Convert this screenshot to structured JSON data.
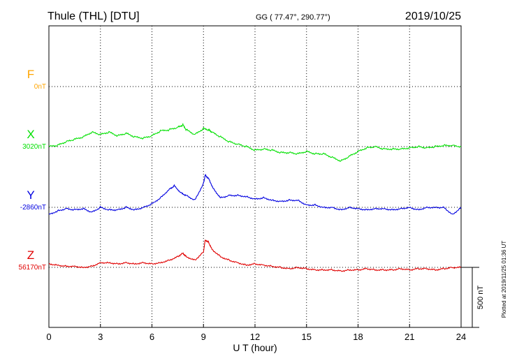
{
  "header": {
    "station": "Thule (THL)  [DTU]",
    "coords": "GG ( 77.47°, 290.77°)",
    "date": "2019/10/25"
  },
  "footer": {
    "plotted": "Plotted at 2019/11/25 01:36 UT"
  },
  "chart_data": {
    "type": "line",
    "title": "Thule (THL)  [DTU]",
    "xlabel": "U T (hour)",
    "ylabel": "",
    "xlim": [
      0,
      24
    ],
    "x_ticks": [
      0,
      3,
      6,
      9,
      12,
      15,
      18,
      21,
      24
    ],
    "x_tick_labels": [
      "0",
      "3",
      "6",
      "9",
      "12",
      "15",
      "18",
      "21",
      "24"
    ],
    "grid": true,
    "scale_bar": {
      "label": "500 nT",
      "value_nT": 500
    },
    "series": [
      {
        "name": "F",
        "baseline_label": "0nT",
        "color": "#ffa500",
        "baseline_nT": 0,
        "x": [],
        "y": []
      },
      {
        "name": "X",
        "baseline_label": "3020nT",
        "color": "#00e000",
        "baseline_nT": 3020,
        "x": [
          0,
          0.5,
          1,
          1.5,
          2,
          2.5,
          3,
          3.5,
          4,
          4.5,
          5,
          5.5,
          6,
          6.5,
          7,
          7.5,
          7.8,
          8,
          8.5,
          9,
          9.3,
          9.5,
          10,
          10.5,
          11,
          11.5,
          12,
          12.5,
          13,
          13.5,
          14,
          14.5,
          15,
          15.5,
          16,
          16.5,
          17,
          17.5,
          18,
          18.5,
          19,
          19.5,
          20,
          20.5,
          21,
          21.5,
          22,
          22.5,
          23,
          23.5,
          24
        ],
        "y": [
          3020,
          3030,
          3060,
          3080,
          3100,
          3140,
          3120,
          3140,
          3110,
          3130,
          3100,
          3090,
          3110,
          3150,
          3160,
          3180,
          3200,
          3160,
          3120,
          3170,
          3160,
          3140,
          3100,
          3060,
          3040,
          3020,
          2990,
          3000,
          2990,
          2970,
          2970,
          2960,
          2980,
          2960,
          2960,
          2930,
          2900,
          2940,
          2980,
          3010,
          3020,
          3000,
          3000,
          3000,
          3010,
          3020,
          3010,
          3020,
          3030,
          3030,
          3020
        ]
      },
      {
        "name": "Y",
        "baseline_label": "-2860nT",
        "color": "#0000e0",
        "baseline_nT": -2860,
        "x": [
          0,
          0.5,
          1,
          1.5,
          2,
          2.5,
          3,
          3.5,
          4,
          4.5,
          5,
          5.5,
          6,
          6.5,
          7,
          7.3,
          7.7,
          8,
          8.5,
          9,
          9.1,
          9.3,
          9.6,
          10,
          10.5,
          11,
          11.5,
          12,
          12.5,
          13,
          13.5,
          14,
          14.5,
          15,
          15.5,
          16,
          16.5,
          17,
          17.5,
          18,
          18.5,
          19,
          19.5,
          20,
          20.5,
          21,
          21.5,
          22,
          22.5,
          23,
          23.5,
          24
        ],
        "y": [
          -2920,
          -2890,
          -2870,
          -2880,
          -2870,
          -2900,
          -2860,
          -2880,
          -2880,
          -2860,
          -2880,
          -2860,
          -2830,
          -2780,
          -2710,
          -2680,
          -2740,
          -2760,
          -2800,
          -2660,
          -2590,
          -2620,
          -2710,
          -2780,
          -2760,
          -2760,
          -2770,
          -2790,
          -2780,
          -2800,
          -2810,
          -2800,
          -2800,
          -2840,
          -2840,
          -2860,
          -2860,
          -2880,
          -2860,
          -2870,
          -2880,
          -2870,
          -2870,
          -2880,
          -2870,
          -2860,
          -2880,
          -2860,
          -2860,
          -2860,
          -2920,
          -2860
        ]
      },
      {
        "name": "Z",
        "baseline_label": "56170nT",
        "color": "#e00000",
        "baseline_nT": 56170,
        "x": [
          0,
          0.5,
          1,
          1.5,
          2,
          2.5,
          3,
          3.5,
          4,
          4.5,
          5,
          5.5,
          6,
          6.5,
          7,
          7.5,
          7.8,
          8,
          8.5,
          9,
          9.1,
          9.3,
          9.5,
          10,
          10.5,
          11,
          11.5,
          12,
          12.5,
          13,
          13.5,
          14,
          14.5,
          15,
          15.5,
          16,
          16.5,
          17,
          17.5,
          18,
          18.5,
          19,
          19.5,
          20,
          20.5,
          21,
          21.5,
          22,
          22.5,
          23,
          23.5,
          24
        ],
        "y": [
          56200,
          56190,
          56180,
          56180,
          56170,
          56180,
          56210,
          56210,
          56200,
          56210,
          56200,
          56210,
          56200,
          56210,
          56230,
          56260,
          56290,
          56260,
          56230,
          56300,
          56400,
          56380,
          56320,
          56260,
          56230,
          56210,
          56190,
          56200,
          56190,
          56180,
          56170,
          56160,
          56170,
          56160,
          56150,
          56150,
          56150,
          56140,
          56150,
          56150,
          56160,
          56150,
          56150,
          56150,
          56160,
          56150,
          56160,
          56160,
          56150,
          56160,
          56170,
          56170
        ]
      }
    ]
  }
}
